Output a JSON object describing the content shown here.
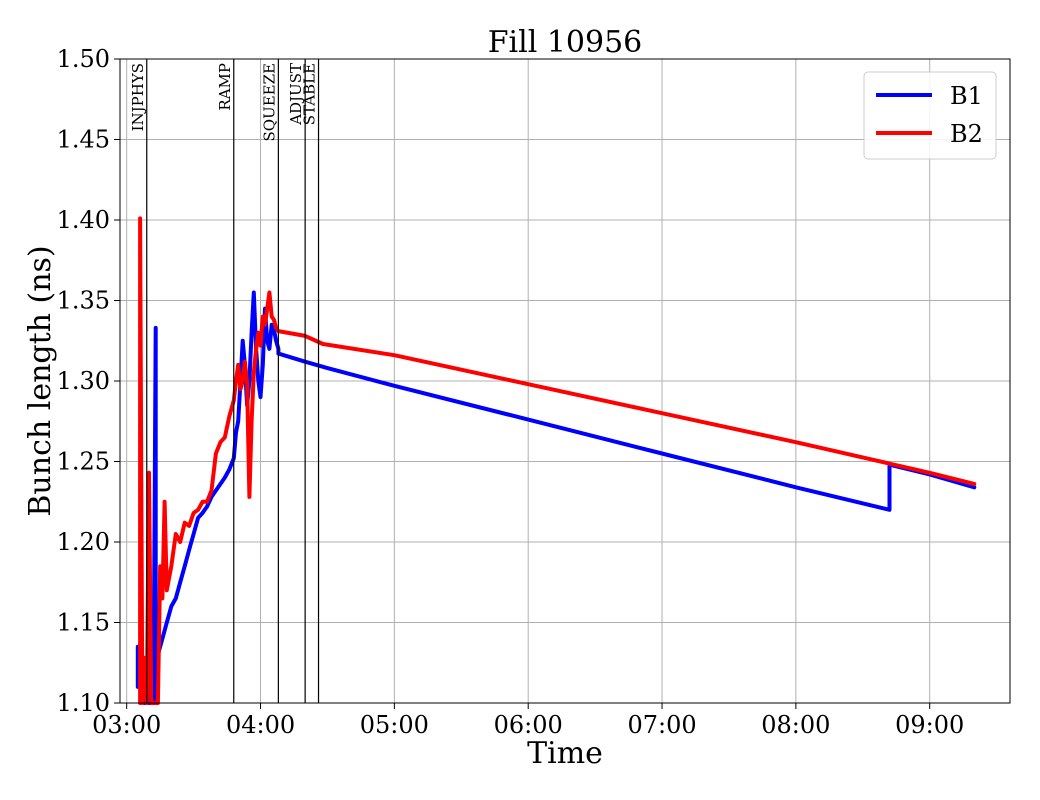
{
  "chart_data": {
    "type": "line",
    "title": "Fill 10956",
    "xlabel": "Time",
    "ylabel": "Bunch length (ns)",
    "xlim": [
      "02:57",
      "09:36"
    ],
    "ylim": [
      1.1,
      1.5
    ],
    "x_ticks": [
      "03:00",
      "04:00",
      "05:00",
      "06:00",
      "07:00",
      "08:00",
      "09:00"
    ],
    "y_ticks": [
      "1.10",
      "1.15",
      "1.20",
      "1.25",
      "1.30",
      "1.35",
      "1.40",
      "1.45",
      "1.50"
    ],
    "grid": true,
    "legend_position": "top-right",
    "mode_markers": [
      {
        "label": "INJPHYS",
        "time": "03:09"
      },
      {
        "label": "RAMP",
        "time": "03:48"
      },
      {
        "label": "SQUEEZE",
        "time": "04:08"
      },
      {
        "label": "ADJUST",
        "time": "04:20"
      },
      {
        "label": "STABLE",
        "time": "04:26"
      }
    ],
    "series": [
      {
        "name": "B1",
        "color": "#0000ff",
        "points": [
          [
            "03:05",
            1.11
          ],
          [
            "03:05",
            1.135
          ],
          [
            "03:06",
            1.118
          ],
          [
            "03:07",
            1.125
          ],
          [
            "03:08",
            1.1
          ],
          [
            "03:09",
            1.115
          ],
          [
            "03:10",
            1.1
          ],
          [
            "03:12",
            1.1
          ],
          [
            "03:13",
            1.333
          ],
          [
            "03:13",
            1.1
          ],
          [
            "03:14",
            1.13
          ],
          [
            "03:16",
            1.14
          ],
          [
            "03:18",
            1.15
          ],
          [
            "03:20",
            1.16
          ],
          [
            "03:22",
            1.165
          ],
          [
            "03:24",
            1.175
          ],
          [
            "03:26",
            1.185
          ],
          [
            "03:28",
            1.195
          ],
          [
            "03:30",
            1.205
          ],
          [
            "03:32",
            1.215
          ],
          [
            "03:34",
            1.218
          ],
          [
            "03:36",
            1.222
          ],
          [
            "03:38",
            1.228
          ],
          [
            "03:40",
            1.232
          ],
          [
            "03:42",
            1.236
          ],
          [
            "03:44",
            1.24
          ],
          [
            "03:46",
            1.245
          ],
          [
            "03:48",
            1.252
          ],
          [
            "03:49",
            1.268
          ],
          [
            "03:50",
            1.275
          ],
          [
            "03:51",
            1.3
          ],
          [
            "03:52",
            1.325
          ],
          [
            "03:53",
            1.31
          ],
          [
            "03:54",
            1.285
          ],
          [
            "03:55",
            1.3
          ],
          [
            "03:56",
            1.33
          ],
          [
            "03:57",
            1.355
          ],
          [
            "03:58",
            1.32
          ],
          [
            "03:59",
            1.3
          ],
          [
            "04:00",
            1.29
          ],
          [
            "04:01",
            1.31
          ],
          [
            "04:02",
            1.345
          ],
          [
            "04:03",
            1.325
          ],
          [
            "04:04",
            1.32
          ],
          [
            "04:05",
            1.335
          ],
          [
            "04:06",
            1.332
          ],
          [
            "04:07",
            1.325
          ],
          [
            "04:08",
            1.32
          ],
          [
            "04:08",
            1.317
          ],
          [
            "04:20",
            1.312
          ],
          [
            "04:30",
            1.308
          ],
          [
            "05:00",
            1.297
          ],
          [
            "06:00",
            1.276
          ],
          [
            "07:00",
            1.255
          ],
          [
            "08:00",
            1.234
          ],
          [
            "08:42",
            1.22
          ],
          [
            "08:42",
            1.248
          ],
          [
            "09:00",
            1.242
          ],
          [
            "09:20",
            1.234
          ]
        ]
      },
      {
        "name": "B2",
        "color": "#ff0000",
        "points": [
          [
            "03:06",
            1.1
          ],
          [
            "03:06",
            1.401
          ],
          [
            "03:07",
            1.1
          ],
          [
            "03:08",
            1.128
          ],
          [
            "03:09",
            1.1
          ],
          [
            "03:10",
            1.243
          ],
          [
            "03:11",
            1.1
          ],
          [
            "03:14",
            1.1
          ],
          [
            "03:15",
            1.185
          ],
          [
            "03:16",
            1.165
          ],
          [
            "03:17",
            1.225
          ],
          [
            "03:18",
            1.17
          ],
          [
            "03:20",
            1.185
          ],
          [
            "03:22",
            1.205
          ],
          [
            "03:24",
            1.2
          ],
          [
            "03:26",
            1.212
          ],
          [
            "03:28",
            1.21
          ],
          [
            "03:30",
            1.218
          ],
          [
            "03:32",
            1.22
          ],
          [
            "03:34",
            1.225
          ],
          [
            "03:36",
            1.225
          ],
          [
            "03:38",
            1.232
          ],
          [
            "03:40",
            1.255
          ],
          [
            "03:42",
            1.262
          ],
          [
            "03:44",
            1.265
          ],
          [
            "03:46",
            1.278
          ],
          [
            "03:48",
            1.288
          ],
          [
            "03:49",
            1.3
          ],
          [
            "03:50",
            1.31
          ],
          [
            "03:51",
            1.295
          ],
          [
            "03:52",
            1.3
          ],
          [
            "03:53",
            1.312
          ],
          [
            "03:54",
            1.298
          ],
          [
            "03:55",
            1.228
          ],
          [
            "03:56",
            1.275
          ],
          [
            "03:57",
            1.305
          ],
          [
            "03:58",
            1.32
          ],
          [
            "03:59",
            1.33
          ],
          [
            "04:00",
            1.322
          ],
          [
            "04:01",
            1.34
          ],
          [
            "04:02",
            1.335
          ],
          [
            "04:03",
            1.345
          ],
          [
            "04:04",
            1.355
          ],
          [
            "04:05",
            1.34
          ],
          [
            "04:06",
            1.338
          ],
          [
            "04:07",
            1.333
          ],
          [
            "04:08",
            1.331
          ],
          [
            "04:20",
            1.328
          ],
          [
            "04:28",
            1.323
          ],
          [
            "05:00",
            1.316
          ],
          [
            "06:00",
            1.298
          ],
          [
            "07:00",
            1.28
          ],
          [
            "08:00",
            1.262
          ],
          [
            "09:00",
            1.243
          ],
          [
            "09:20",
            1.236
          ]
        ]
      }
    ]
  }
}
